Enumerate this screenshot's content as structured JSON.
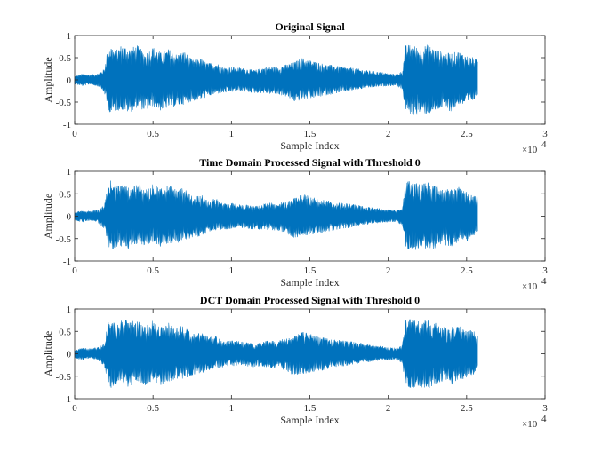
{
  "figure": {
    "background": "#ffffff",
    "axis_color": "#262626",
    "series_color": "#0072BD"
  },
  "chart_data": [
    {
      "type": "line",
      "title": "Original Signal",
      "xlabel": "Sample Index",
      "ylabel": "Amplitude",
      "xlim": [
        0,
        30000
      ],
      "ylim": [
        -1,
        1
      ],
      "x_ticks": [
        0,
        5000,
        10000,
        15000,
        20000,
        25000,
        30000
      ],
      "x_tick_labels": [
        "0",
        "0.5",
        "1",
        "1.5",
        "2",
        "2.5",
        "3"
      ],
      "x_exponent_label": "×10",
      "x_exponent_power": "4",
      "y_ticks": [
        -1,
        -0.5,
        0,
        0.5,
        1
      ],
      "y_tick_labels": [
        "-1",
        "-0.5",
        "0",
        "0.5",
        "1"
      ],
      "grid": false,
      "series": [
        {
          "color": "#0072BD",
          "envelope_x": [
            0,
            500,
            1000,
            1500,
            1900,
            2100,
            2300,
            2600,
            3000,
            3500,
            4000,
            4500,
            5000,
            5500,
            6000,
            6500,
            7000,
            7500,
            8000,
            8500,
            9000,
            9500,
            10000,
            10500,
            11000,
            11500,
            12000,
            12500,
            13000,
            13500,
            14000,
            14500,
            15000,
            15500,
            16000,
            16500,
            17000,
            17500,
            18000,
            18500,
            19000,
            19500,
            20000,
            20500,
            20900,
            21100,
            21500,
            22000,
            22500,
            23000,
            23500,
            24000,
            24500,
            25000,
            25500,
            25700
          ],
          "envelope_max": [
            0.08,
            0.14,
            0.12,
            0.15,
            0.25,
            0.72,
            0.8,
            0.65,
            0.8,
            0.72,
            0.78,
            0.6,
            0.75,
            0.62,
            0.7,
            0.58,
            0.65,
            0.45,
            0.5,
            0.38,
            0.4,
            0.28,
            0.3,
            0.28,
            0.25,
            0.22,
            0.28,
            0.3,
            0.3,
            0.35,
            0.4,
            0.5,
            0.45,
            0.4,
            0.35,
            0.33,
            0.3,
            0.28,
            0.26,
            0.22,
            0.2,
            0.18,
            0.15,
            0.13,
            0.2,
            0.78,
            0.8,
            0.72,
            0.8,
            0.7,
            0.62,
            0.6,
            0.65,
            0.55,
            0.5,
            0.45
          ],
          "envelope_min": [
            -0.1,
            -0.14,
            -0.1,
            -0.15,
            -0.3,
            -0.62,
            -0.8,
            -0.7,
            -0.68,
            -0.75,
            -0.62,
            -0.7,
            -0.6,
            -0.7,
            -0.62,
            -0.6,
            -0.55,
            -0.48,
            -0.45,
            -0.38,
            -0.32,
            -0.3,
            -0.28,
            -0.25,
            -0.28,
            -0.3,
            -0.3,
            -0.32,
            -0.33,
            -0.38,
            -0.5,
            -0.45,
            -0.42,
            -0.4,
            -0.35,
            -0.32,
            -0.28,
            -0.26,
            -0.22,
            -0.2,
            -0.17,
            -0.15,
            -0.14,
            -0.13,
            -0.22,
            -0.7,
            -0.8,
            -0.75,
            -0.78,
            -0.72,
            -0.62,
            -0.72,
            -0.55,
            -0.58,
            -0.45,
            -0.35
          ]
        }
      ]
    },
    {
      "type": "line",
      "title": "Time Domain Processed Signal with Threshold 0",
      "xlabel": "Sample Index",
      "ylabel": "Amplitude",
      "xlim": [
        0,
        30000
      ],
      "ylim": [
        -1,
        1
      ],
      "x_ticks": [
        0,
        5000,
        10000,
        15000,
        20000,
        25000,
        30000
      ],
      "x_tick_labels": [
        "0",
        "0.5",
        "1",
        "1.5",
        "2",
        "2.5",
        "3"
      ],
      "x_exponent_label": "×10",
      "x_exponent_power": "4",
      "y_ticks": [
        -1,
        -0.5,
        0,
        0.5,
        1
      ],
      "y_tick_labels": [
        "-1",
        "-0.5",
        "0",
        "0.5",
        "1"
      ],
      "grid": false,
      "series": [
        {
          "color": "#0072BD",
          "envelope_x": [
            0,
            500,
            1000,
            1500,
            1900,
            2100,
            2300,
            2600,
            3000,
            3500,
            4000,
            4500,
            5000,
            5500,
            6000,
            6500,
            7000,
            7500,
            8000,
            8500,
            9000,
            9500,
            10000,
            10500,
            11000,
            11500,
            12000,
            12500,
            13000,
            13500,
            14000,
            14500,
            15000,
            15500,
            16000,
            16500,
            17000,
            17500,
            18000,
            18500,
            19000,
            19500,
            20000,
            20500,
            20900,
            21100,
            21500,
            22000,
            22500,
            23000,
            23500,
            24000,
            24500,
            25000,
            25500,
            25700
          ],
          "envelope_max": [
            0.08,
            0.14,
            0.12,
            0.15,
            0.25,
            0.72,
            0.8,
            0.65,
            0.8,
            0.72,
            0.78,
            0.6,
            0.75,
            0.62,
            0.7,
            0.58,
            0.65,
            0.45,
            0.5,
            0.38,
            0.4,
            0.28,
            0.3,
            0.28,
            0.25,
            0.22,
            0.28,
            0.3,
            0.3,
            0.35,
            0.4,
            0.5,
            0.45,
            0.4,
            0.35,
            0.33,
            0.3,
            0.28,
            0.26,
            0.22,
            0.2,
            0.18,
            0.15,
            0.13,
            0.2,
            0.78,
            0.8,
            0.72,
            0.8,
            0.7,
            0.62,
            0.6,
            0.65,
            0.55,
            0.5,
            0.45
          ],
          "envelope_min": [
            -0.1,
            -0.14,
            -0.1,
            -0.15,
            -0.3,
            -0.62,
            -0.8,
            -0.7,
            -0.68,
            -0.75,
            -0.62,
            -0.7,
            -0.6,
            -0.7,
            -0.62,
            -0.6,
            -0.55,
            -0.48,
            -0.45,
            -0.38,
            -0.32,
            -0.3,
            -0.28,
            -0.25,
            -0.28,
            -0.3,
            -0.3,
            -0.32,
            -0.33,
            -0.38,
            -0.5,
            -0.45,
            -0.42,
            -0.4,
            -0.35,
            -0.32,
            -0.28,
            -0.26,
            -0.22,
            -0.2,
            -0.17,
            -0.15,
            -0.14,
            -0.13,
            -0.22,
            -0.7,
            -0.8,
            -0.75,
            -0.78,
            -0.72,
            -0.62,
            -0.72,
            -0.55,
            -0.58,
            -0.45,
            -0.35
          ]
        }
      ]
    },
    {
      "type": "line",
      "title": "DCT Domain Processed Signal with Threshold 0",
      "xlabel": "Sample Index",
      "ylabel": "Amplitude",
      "xlim": [
        0,
        30000
      ],
      "ylim": [
        -1,
        1
      ],
      "x_ticks": [
        0,
        5000,
        10000,
        15000,
        20000,
        25000,
        30000
      ],
      "x_tick_labels": [
        "0",
        "0.5",
        "1",
        "1.5",
        "2",
        "2.5",
        "3"
      ],
      "x_exponent_label": "×10",
      "x_exponent_power": "4",
      "y_ticks": [
        -1,
        -0.5,
        0,
        0.5,
        1
      ],
      "y_tick_labels": [
        "-1",
        "-0.5",
        "0",
        "0.5",
        "1"
      ],
      "grid": false,
      "series": [
        {
          "color": "#0072BD",
          "envelope_x": [
            0,
            500,
            1000,
            1500,
            1900,
            2100,
            2300,
            2600,
            3000,
            3500,
            4000,
            4500,
            5000,
            5500,
            6000,
            6500,
            7000,
            7500,
            8000,
            8500,
            9000,
            9500,
            10000,
            10500,
            11000,
            11500,
            12000,
            12500,
            13000,
            13500,
            14000,
            14500,
            15000,
            15500,
            16000,
            16500,
            17000,
            17500,
            18000,
            18500,
            19000,
            19500,
            20000,
            20500,
            20900,
            21100,
            21500,
            22000,
            22500,
            23000,
            23500,
            24000,
            24500,
            25000,
            25500,
            25700
          ],
          "envelope_max": [
            0.08,
            0.14,
            0.12,
            0.15,
            0.25,
            0.72,
            0.8,
            0.65,
            0.8,
            0.72,
            0.78,
            0.6,
            0.75,
            0.62,
            0.7,
            0.58,
            0.65,
            0.45,
            0.5,
            0.38,
            0.4,
            0.28,
            0.3,
            0.28,
            0.25,
            0.22,
            0.28,
            0.3,
            0.3,
            0.35,
            0.4,
            0.5,
            0.45,
            0.4,
            0.35,
            0.33,
            0.3,
            0.28,
            0.26,
            0.22,
            0.2,
            0.18,
            0.15,
            0.13,
            0.2,
            0.78,
            0.8,
            0.72,
            0.8,
            0.7,
            0.62,
            0.6,
            0.65,
            0.55,
            0.5,
            0.45
          ],
          "envelope_min": [
            -0.1,
            -0.14,
            -0.1,
            -0.15,
            -0.3,
            -0.62,
            -0.8,
            -0.7,
            -0.68,
            -0.75,
            -0.62,
            -0.7,
            -0.6,
            -0.7,
            -0.62,
            -0.6,
            -0.55,
            -0.48,
            -0.45,
            -0.38,
            -0.32,
            -0.3,
            -0.28,
            -0.25,
            -0.28,
            -0.3,
            -0.3,
            -0.32,
            -0.33,
            -0.38,
            -0.5,
            -0.45,
            -0.42,
            -0.4,
            -0.35,
            -0.32,
            -0.28,
            -0.26,
            -0.22,
            -0.2,
            -0.17,
            -0.15,
            -0.14,
            -0.13,
            -0.22,
            -0.7,
            -0.8,
            -0.75,
            -0.78,
            -0.72,
            -0.62,
            -0.72,
            -0.55,
            -0.58,
            -0.45,
            -0.35
          ]
        }
      ]
    }
  ]
}
